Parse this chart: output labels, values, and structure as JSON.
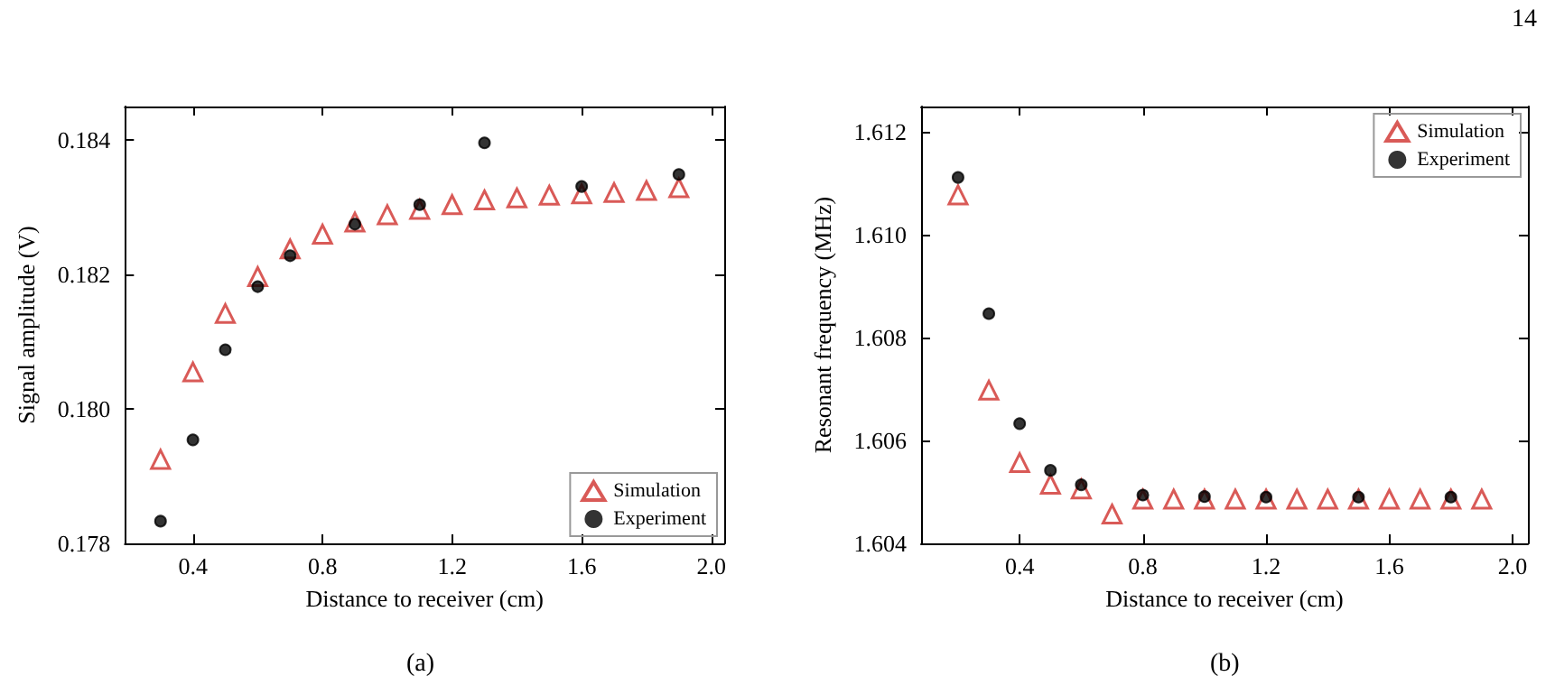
{
  "chart_data": [
    {
      "type": "scatter",
      "xlabel": "Distance to receiver (cm)",
      "ylabel": "Signal amplitude (V)",
      "series": [
        {
          "name": "Simulation",
          "color": "#d0312d",
          "marker": "triangle",
          "x": [
            0.3,
            0.4,
            0.5,
            0.6,
            0.7,
            0.8,
            0.9,
            1.0,
            1.1,
            1.2,
            1.3,
            1.4,
            1.5,
            1.6,
            1.7,
            1.8,
            1.9
          ],
          "values": [
            0.17925,
            0.18055,
            0.18142,
            0.18197,
            0.18238,
            0.1826,
            0.18278,
            0.18289,
            0.18297,
            0.18304,
            0.18311,
            0.18314,
            0.18318,
            0.1832,
            0.18322,
            0.18325,
            0.18329
          ]
        },
        {
          "name": "Experiment",
          "color": "#000000",
          "marker": "circle",
          "x": [
            0.3,
            0.4,
            0.5,
            0.6,
            0.7,
            0.9,
            1.1,
            1.3,
            1.6,
            1.9
          ],
          "values": [
            0.17833,
            0.17954,
            0.18088,
            0.18182,
            0.18228,
            0.18275,
            0.18304,
            0.18396,
            0.18331,
            0.18349
          ]
        }
      ],
      "xlim": [
        0.19,
        2.04
      ],
      "xticks": [
        0.4,
        0.8,
        1.2,
        1.6,
        {
          "value": 2,
          "label": "2.0"
        }
      ],
      "ylim": [
        0.178,
        0.1845
      ],
      "yticks": [
        0.178,
        {
          "value": 0.18,
          "label": "0.180"
        },
        0.182,
        0.184
      ],
      "legend": "bottom right",
      "grid": false,
      "annotations": [
        "(a)"
      ]
    },
    {
      "type": "scatter",
      "xlabel": "Distance to receiver (cm)",
      "ylabel": "Resonant frequency (MHz)",
      "series": [
        {
          "name": "Simulation",
          "color": "#d0312d",
          "marker": "triangle",
          "x": [
            0.2,
            0.3,
            0.4,
            0.5,
            0.6,
            0.7,
            0.8,
            0.9,
            1.0,
            1.1,
            1.2,
            1.3,
            1.4,
            1.5,
            1.6,
            1.7,
            1.8,
            1.9
          ],
          "values": [
            1.61078,
            1.60698,
            1.60557,
            1.60515,
            1.60506,
            1.60457,
            1.60486,
            1.60486,
            1.60486,
            1.60486,
            1.60486,
            1.60486,
            1.60486,
            1.60486,
            1.60486,
            1.60486,
            1.60486,
            1.60486
          ]
        },
        {
          "name": "Experiment",
          "color": "#000000",
          "marker": "circle",
          "x": [
            0.2,
            0.3,
            0.4,
            0.5,
            0.6,
            0.8,
            1.0,
            1.2,
            1.5,
            1.8
          ],
          "values": [
            1.61112,
            1.60847,
            1.60633,
            1.60542,
            1.60514,
            1.60494,
            1.60491,
            1.6049,
            1.6049,
            1.6049
          ]
        }
      ],
      "xlim": [
        0.08,
        2.05
      ],
      "xticks": [
        0.4,
        0.8,
        1.2,
        1.6,
        {
          "value": 2,
          "label": "2.0"
        }
      ],
      "ylim": [
        1.604,
        1.6125
      ],
      "yticks": [
        1.604,
        1.606,
        1.608,
        {
          "value": 1.61,
          "label": "1.610"
        },
        1.612
      ],
      "legend": "top right",
      "grid": false,
      "annotations": [
        "14",
        "(b)"
      ]
    }
  ]
}
